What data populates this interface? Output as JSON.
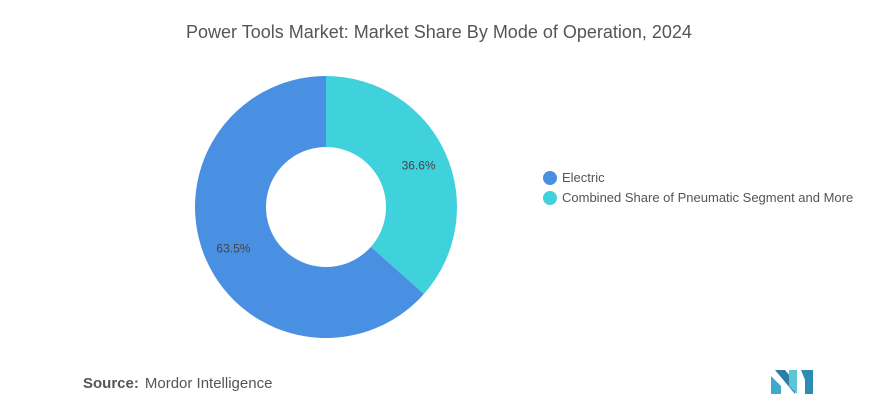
{
  "header": {
    "title": "Power Tools Market: Market Share By Mode of Operation, 2024"
  },
  "chart_data": {
    "type": "pie",
    "variant": "donut",
    "title": "Power Tools Market: Market Share By Mode of Operation, 2024",
    "categories": [
      "Electric",
      "Combined Share of Pneumatic Segment and More"
    ],
    "values": [
      63.5,
      36.6
    ],
    "data_labels": [
      "63.5%",
      "36.6%"
    ],
    "colors": [
      "#4a90e2",
      "#3fd2dc"
    ],
    "legend_position": "right"
  },
  "footer": {
    "source_key": "Source:",
    "source_value": "Mordor Intelligence",
    "logo_icon": "mordor-intelligence-logo-icon"
  }
}
